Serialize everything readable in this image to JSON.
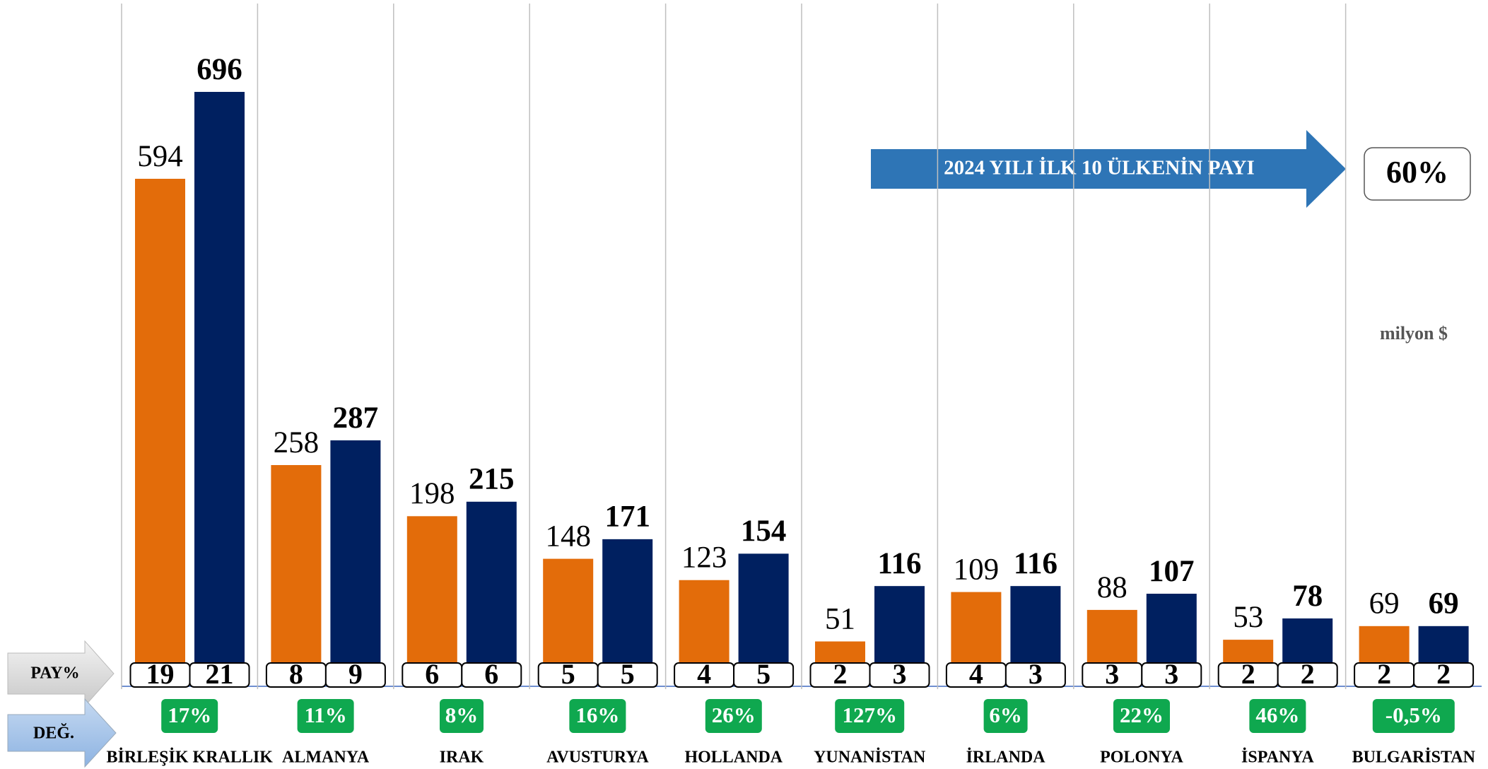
{
  "chart_data": {
    "type": "bar",
    "categories": [
      "BİRLEŞİK KRALLIK",
      "ALMANYA",
      "IRAK",
      "AVUSTURYA",
      "HOLLANDA",
      "YUNANİSTAN",
      "İRLANDA",
      "POLONYA",
      "İSPANYA",
      "BULGARİSTAN"
    ],
    "series": [
      {
        "color": "#e36c0a",
        "values": [
          594,
          258,
          198,
          148,
          123,
          51,
          109,
          88,
          53,
          69
        ],
        "shares": [
          19,
          8,
          6,
          5,
          4,
          2,
          4,
          3,
          2,
          2
        ]
      },
      {
        "color": "#002060",
        "values": [
          696,
          287,
          215,
          171,
          154,
          116,
          116,
          107,
          78,
          69
        ],
        "shares": [
          21,
          9,
          6,
          5,
          5,
          3,
          3,
          3,
          2,
          2
        ]
      }
    ],
    "changes": {
      "color": "#0fa84f",
      "values": [
        17,
        11,
        8,
        16,
        26,
        127,
        6,
        22,
        46,
        -0.5
      ],
      "value_labels": [
        "17%",
        "11%",
        "8%",
        "16%",
        "26%",
        "127%",
        "6%",
        "22%",
        "46%",
        "-0,5%"
      ]
    },
    "share_row_label": "PAY%",
    "change_row_label": "DEĞ.",
    "unit": "milyon $",
    "callout": {
      "text": "2024 YILI İLK 10 ÜLKENİN PAYI",
      "value": 60,
      "value_label": "60%"
    }
  }
}
